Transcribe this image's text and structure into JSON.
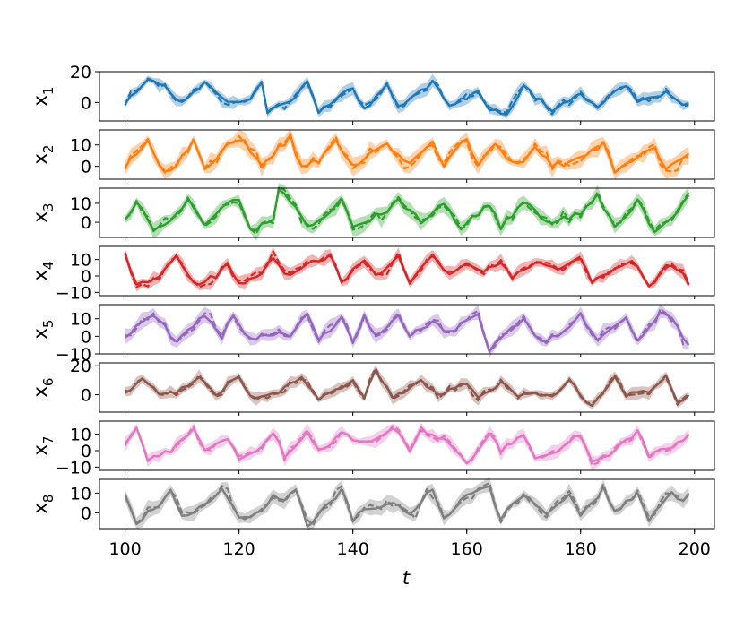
{
  "chart_data": {
    "type": "line",
    "xlabel": "t",
    "xlim": [
      95.5,
      203.5
    ],
    "xticks": [
      100,
      120,
      140,
      160,
      180,
      200
    ],
    "x_start": 100,
    "x_end": 199,
    "panels": [
      {
        "ylabel_base": "x",
        "ylabel_sub": "1",
        "color": "#1f77b4",
        "ylim": [
          -12,
          20
        ],
        "yticks": [
          20,
          0
        ],
        "seed": 11,
        "period": 6.1,
        "amplitude": 6.5,
        "offset": 3,
        "anchors": [
          [
            100,
            0
          ],
          [
            104,
            15
          ],
          [
            107,
            10
          ],
          [
            110,
            -1
          ],
          [
            114,
            14
          ],
          [
            118,
            -1
          ],
          [
            122,
            1
          ],
          [
            124,
            14
          ],
          [
            125,
            -7
          ],
          [
            130,
            4
          ],
          [
            132,
            14
          ],
          [
            134,
            -6
          ],
          [
            140,
            10
          ],
          [
            142,
            -5
          ],
          [
            146,
            13
          ],
          [
            148,
            -3
          ],
          [
            154,
            13
          ],
          [
            157,
            -2
          ],
          [
            162,
            6
          ],
          [
            164,
            -5
          ],
          [
            167,
            -8
          ],
          [
            170,
            10
          ],
          [
            175,
            -5
          ],
          [
            180,
            6
          ],
          [
            183,
            -3
          ],
          [
            188,
            12
          ],
          [
            190,
            0
          ],
          [
            195,
            6
          ],
          [
            198,
            -3
          ],
          [
            199,
            1
          ]
        ]
      },
      {
        "ylabel_base": "x",
        "ylabel_sub": "2",
        "color": "#ff7f0e",
        "ylim": [
          -6,
          17
        ],
        "yticks": [
          10,
          0
        ],
        "seed": 23,
        "period": 5.7,
        "amplitude": 6,
        "offset": 4,
        "anchors": [
          [
            100,
            0
          ],
          [
            104,
            13
          ],
          [
            106,
            0
          ],
          [
            108,
            -2
          ],
          [
            112,
            12
          ],
          [
            114,
            0
          ],
          [
            118,
            9
          ],
          [
            121,
            12
          ],
          [
            124,
            0
          ],
          [
            129,
            14
          ],
          [
            131,
            -1
          ],
          [
            134,
            3
          ],
          [
            137,
            13
          ],
          [
            140,
            0
          ],
          [
            146,
            10
          ],
          [
            150,
            2
          ],
          [
            154,
            12
          ],
          [
            156,
            0
          ],
          [
            160,
            13
          ],
          [
            162,
            0
          ],
          [
            165,
            10
          ],
          [
            169,
            0
          ],
          [
            172,
            10
          ],
          [
            175,
            0
          ],
          [
            180,
            4
          ],
          [
            184,
            11
          ],
          [
            186,
            -3
          ],
          [
            190,
            5
          ],
          [
            193,
            10
          ],
          [
            195,
            -2
          ],
          [
            199,
            5
          ]
        ]
      },
      {
        "ylabel_base": "x",
        "ylabel_sub": "3",
        "color": "#2ca02c",
        "ylim": [
          -8,
          18
        ],
        "yticks": [
          10,
          0
        ],
        "seed": 37,
        "period": 6.4,
        "amplitude": 6.5,
        "offset": 3,
        "anchors": [
          [
            100,
            2
          ],
          [
            102,
            11
          ],
          [
            105,
            -3
          ],
          [
            108,
            0
          ],
          [
            111,
            13
          ],
          [
            114,
            -1
          ],
          [
            118,
            9
          ],
          [
            120,
            12
          ],
          [
            122,
            -4
          ],
          [
            126,
            0
          ],
          [
            127,
            16
          ],
          [
            130,
            9
          ],
          [
            132,
            -3
          ],
          [
            136,
            4
          ],
          [
            138,
            14
          ],
          [
            140,
            -3
          ],
          [
            146,
            6
          ],
          [
            148,
            12
          ],
          [
            152,
            0
          ],
          [
            156,
            10
          ],
          [
            159,
            -3
          ],
          [
            164,
            10
          ],
          [
            166,
            -3
          ],
          [
            170,
            11
          ],
          [
            174,
            0
          ],
          [
            180,
            4
          ],
          [
            183,
            14
          ],
          [
            186,
            -3
          ],
          [
            190,
            11
          ],
          [
            193,
            -5
          ],
          [
            196,
            2
          ],
          [
            199,
            15
          ]
        ]
      },
      {
        "ylabel_base": "x",
        "ylabel_sub": "4",
        "color": "#d62728",
        "ylim": [
          -12,
          18
        ],
        "yticks": [
          10,
          0,
          -10
        ],
        "seed": 49,
        "period": 5.9,
        "amplitude": 7,
        "offset": 2,
        "anchors": [
          [
            100,
            14
          ],
          [
            102,
            -5
          ],
          [
            106,
            0
          ],
          [
            109,
            12
          ],
          [
            112,
            -5
          ],
          [
            116,
            0
          ],
          [
            118,
            8
          ],
          [
            120,
            -5
          ],
          [
            124,
            2
          ],
          [
            126,
            11
          ],
          [
            128,
            0
          ],
          [
            132,
            7
          ],
          [
            136,
            12
          ],
          [
            138,
            -4
          ],
          [
            142,
            10
          ],
          [
            144,
            0
          ],
          [
            148,
            12
          ],
          [
            150,
            -5
          ],
          [
            154,
            13
          ],
          [
            157,
            1
          ],
          [
            160,
            8
          ],
          [
            163,
            2
          ],
          [
            166,
            9
          ],
          [
            168,
            -1
          ],
          [
            172,
            8
          ],
          [
            176,
            3
          ],
          [
            180,
            11
          ],
          [
            182,
            -5
          ],
          [
            186,
            5
          ],
          [
            189,
            10
          ],
          [
            192,
            -7
          ],
          [
            195,
            6
          ],
          [
            198,
            3
          ],
          [
            199,
            -5
          ]
        ]
      },
      {
        "ylabel_base": "x",
        "ylabel_sub": "5",
        "color": "#9467bd",
        "ylim": [
          -10,
          18
        ],
        "yticks": [
          10,
          0,
          -10
        ],
        "seed": 61,
        "period": 6.3,
        "amplitude": 7,
        "offset": 3,
        "anchors": [
          [
            100,
            0
          ],
          [
            104,
            12
          ],
          [
            106,
            10
          ],
          [
            109,
            -4
          ],
          [
            114,
            12
          ],
          [
            117,
            0
          ],
          [
            119,
            12
          ],
          [
            122,
            -2
          ],
          [
            126,
            2
          ],
          [
            129,
            0
          ],
          [
            132,
            14
          ],
          [
            134,
            -3
          ],
          [
            138,
            10
          ],
          [
            140,
            -4
          ],
          [
            142,
            12
          ],
          [
            144,
            0
          ],
          [
            148,
            11
          ],
          [
            150,
            0
          ],
          [
            154,
            8
          ],
          [
            157,
            2
          ],
          [
            160,
            10
          ],
          [
            162,
            12
          ],
          [
            164,
            -8
          ],
          [
            166,
            0
          ],
          [
            170,
            10
          ],
          [
            173,
            -3
          ],
          [
            178,
            4
          ],
          [
            180,
            12
          ],
          [
            183,
            -3
          ],
          [
            188,
            10
          ],
          [
            190,
            -2
          ],
          [
            194,
            14
          ],
          [
            196,
            10
          ],
          [
            199,
            -6
          ]
        ]
      },
      {
        "ylabel_base": "x",
        "ylabel_sub": "6",
        "color": "#8c564b",
        "ylim": [
          -12,
          22
        ],
        "yticks": [
          20,
          0
        ],
        "seed": 73,
        "period": 5.5,
        "amplitude": 5.5,
        "offset": 1,
        "anchors": [
          [
            100,
            2
          ],
          [
            103,
            10
          ],
          [
            106,
            0
          ],
          [
            109,
            2
          ],
          [
            113,
            12
          ],
          [
            116,
            0
          ],
          [
            120,
            13
          ],
          [
            122,
            -2
          ],
          [
            126,
            0
          ],
          [
            131,
            12
          ],
          [
            134,
            -3
          ],
          [
            138,
            5
          ],
          [
            140,
            10
          ],
          [
            142,
            -2
          ],
          [
            144,
            18
          ],
          [
            147,
            -3
          ],
          [
            152,
            10
          ],
          [
            155,
            0
          ],
          [
            160,
            8
          ],
          [
            162,
            -3
          ],
          [
            166,
            8
          ],
          [
            169,
            0
          ],
          [
            176,
            0
          ],
          [
            178,
            10
          ],
          [
            180,
            0
          ],
          [
            182,
            -8
          ],
          [
            186,
            12
          ],
          [
            188,
            0
          ],
          [
            192,
            3
          ],
          [
            195,
            12
          ],
          [
            197,
            -5
          ],
          [
            199,
            -1
          ]
        ]
      },
      {
        "ylabel_base": "x",
        "ylabel_sub": "7",
        "color": "#e377c2",
        "ylim": [
          -12,
          18
        ],
        "yticks": [
          10,
          0,
          -10
        ],
        "seed": 87,
        "period": 6.6,
        "amplitude": 6.5,
        "offset": 3,
        "anchors": [
          [
            100,
            5
          ],
          [
            102,
            13
          ],
          [
            104,
            -5
          ],
          [
            108,
            0
          ],
          [
            112,
            14
          ],
          [
            114,
            0
          ],
          [
            118,
            8
          ],
          [
            120,
            -5
          ],
          [
            124,
            3
          ],
          [
            126,
            12
          ],
          [
            128,
            -4
          ],
          [
            132,
            12
          ],
          [
            134,
            0
          ],
          [
            138,
            10
          ],
          [
            142,
            5
          ],
          [
            146,
            12
          ],
          [
            148,
            12
          ],
          [
            150,
            0
          ],
          [
            152,
            13
          ],
          [
            156,
            6
          ],
          [
            160,
            -8
          ],
          [
            164,
            10
          ],
          [
            166,
            0
          ],
          [
            170,
            10
          ],
          [
            172,
            -5
          ],
          [
            176,
            0
          ],
          [
            180,
            10
          ],
          [
            182,
            -8
          ],
          [
            186,
            0
          ],
          [
            190,
            12
          ],
          [
            192,
            -3
          ],
          [
            196,
            2
          ],
          [
            199,
            9
          ]
        ]
      },
      {
        "ylabel_base": "x",
        "ylabel_sub": "8",
        "color": "#7f7f7f",
        "ylim": [
          -8,
          17
        ],
        "yticks": [
          10,
          0
        ],
        "seed": 99,
        "period": 4.9,
        "amplitude": 6,
        "offset": 2,
        "anchors": [
          [
            100,
            10
          ],
          [
            102,
            -5
          ],
          [
            106,
            5
          ],
          [
            108,
            12
          ],
          [
            110,
            -3
          ],
          [
            114,
            5
          ],
          [
            117,
            12
          ],
          [
            120,
            -3
          ],
          [
            124,
            0
          ],
          [
            126,
            10
          ],
          [
            128,
            5
          ],
          [
            130,
            12
          ],
          [
            132,
            -6
          ],
          [
            136,
            5
          ],
          [
            138,
            12
          ],
          [
            140,
            -3
          ],
          [
            142,
            2
          ],
          [
            146,
            5
          ],
          [
            150,
            0
          ],
          [
            154,
            12
          ],
          [
            156,
            -3
          ],
          [
            160,
            10
          ],
          [
            164,
            12
          ],
          [
            166,
            -3
          ],
          [
            170,
            10
          ],
          [
            174,
            0
          ],
          [
            178,
            10
          ],
          [
            180,
            -2
          ],
          [
            184,
            12
          ],
          [
            186,
            0
          ],
          [
            190,
            10
          ],
          [
            192,
            -3
          ],
          [
            196,
            12
          ],
          [
            198,
            5
          ],
          [
            199,
            9
          ]
        ]
      }
    ]
  }
}
